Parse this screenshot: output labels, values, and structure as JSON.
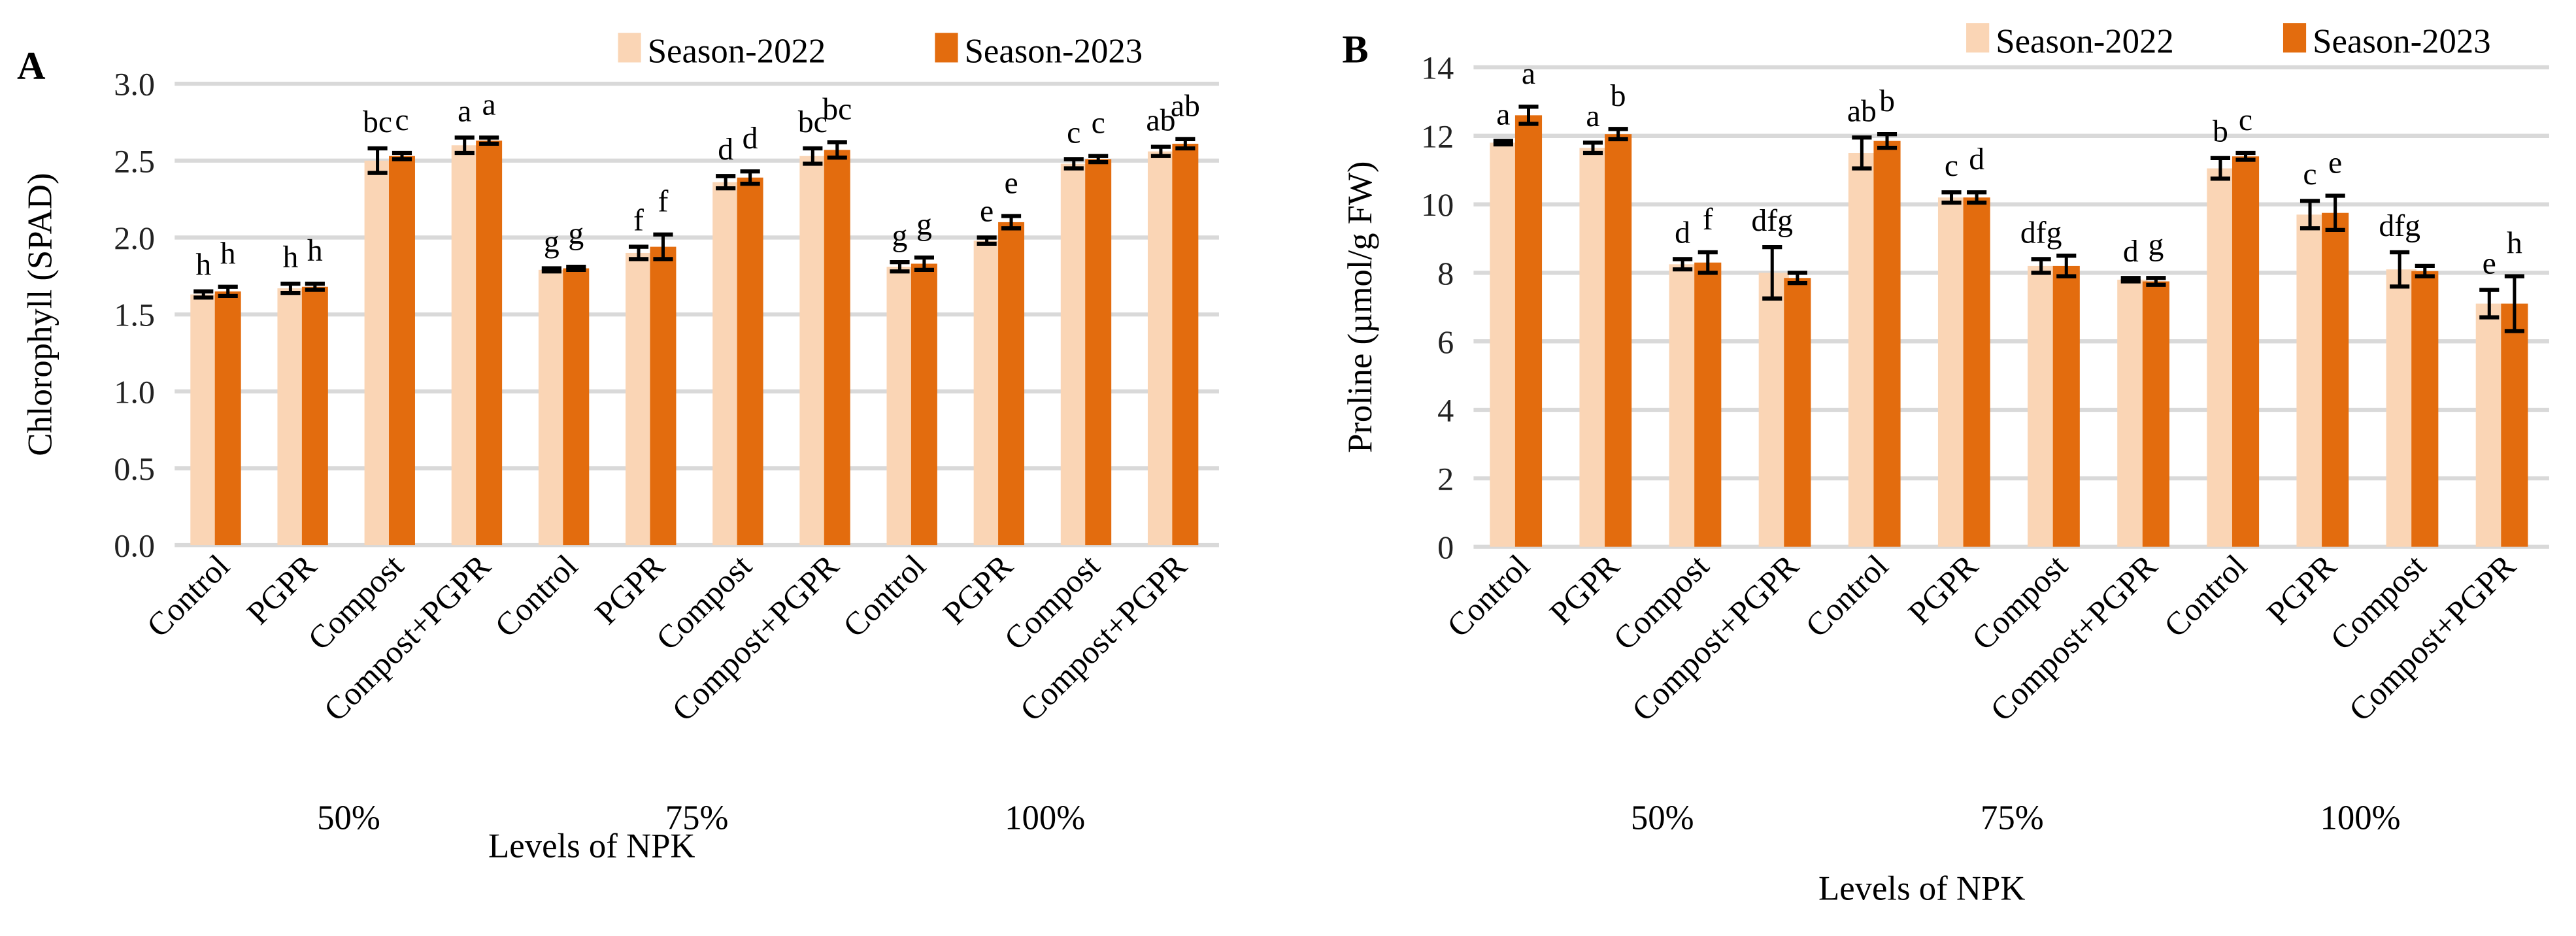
{
  "colors": {
    "s2022": "#FAD5B5",
    "s2023": "#E36C0E",
    "grid": "#D9D9D9",
    "error": "#000000"
  },
  "chart_data": [
    {
      "type": "bar",
      "panel": "A",
      "ylabel": "Chlorophyll (SPAD)",
      "xlabel": "Levels of NPK",
      "ylim": [
        0,
        3.0
      ],
      "yticks": [
        "0.0",
        "0.5",
        "1.0",
        "1.5",
        "2.0",
        "2.5",
        "3.0"
      ],
      "ytick_values": [
        0,
        0.5,
        1,
        1.5,
        2,
        2.5,
        3
      ],
      "grid": true,
      "legend_position": "top-right",
      "categories": [
        "Control",
        "PGPR",
        "Compost",
        "Compost+PGPR",
        "Control",
        "PGPR",
        "Compost",
        "Compost+PGPR",
        "Control",
        "PGPR",
        "Compost",
        "Compost+PGPR"
      ],
      "groups": [
        "50%",
        "75%",
        "100%"
      ],
      "series": [
        {
          "name": "Season-2022",
          "values": [
            1.63,
            1.67,
            2.5,
            2.6,
            1.79,
            1.9,
            2.36,
            2.53,
            1.81,
            1.98,
            2.48,
            2.56
          ],
          "errors": [
            0.02,
            0.03,
            0.08,
            0.05,
            0.01,
            0.04,
            0.04,
            0.05,
            0.03,
            0.02,
            0.03,
            0.03
          ],
          "letters": [
            "h",
            "h",
            "bc",
            "a",
            "g",
            "f",
            "d",
            "bc",
            "g",
            "e",
            "c",
            "ab"
          ]
        },
        {
          "name": "Season-2023",
          "values": [
            1.65,
            1.68,
            2.53,
            2.63,
            1.8,
            1.94,
            2.39,
            2.57,
            1.83,
            2.1,
            2.51,
            2.61
          ],
          "errors": [
            0.03,
            0.02,
            0.02,
            0.02,
            0.01,
            0.08,
            0.04,
            0.05,
            0.04,
            0.04,
            0.02,
            0.03
          ],
          "letters": [
            "h",
            "h",
            "c",
            "a",
            "g",
            "f",
            "d",
            "bc",
            "g",
            "e",
            "c",
            "ab"
          ]
        }
      ]
    },
    {
      "type": "bar",
      "panel": "B",
      "ylabel": "Proline (µmol/g FW)",
      "xlabel": "Levels of NPK",
      "ylim": [
        0,
        14
      ],
      "yticks": [
        "0",
        "2",
        "4",
        "6",
        "8",
        "10",
        "12",
        "14"
      ],
      "ytick_values": [
        0,
        2,
        4,
        6,
        8,
        10,
        12,
        14
      ],
      "grid": true,
      "legend_position": "top-right",
      "categories": [
        "Control",
        "PGPR",
        "Compost",
        "Compost+PGPR",
        "Control",
        "PGPR",
        "Compost",
        "Compost+PGPR",
        "Control",
        "PGPR",
        "Compost",
        "Compost+PGPR"
      ],
      "groups": [
        "50%",
        "75%",
        "100%"
      ],
      "series": [
        {
          "name": "Season-2022",
          "values": [
            11.8,
            11.65,
            8.25,
            8.0,
            11.5,
            10.2,
            8.2,
            7.8,
            11.05,
            9.7,
            8.1,
            7.1
          ],
          "errors": [
            0.05,
            0.15,
            0.15,
            0.75,
            0.45,
            0.15,
            0.2,
            0.05,
            0.3,
            0.4,
            0.5,
            0.4
          ],
          "letters": [
            "a",
            "a",
            "d",
            "dfg",
            "ab",
            "c",
            "dfg",
            "d",
            "b",
            "c",
            "dfg",
            "e"
          ]
        },
        {
          "name": "Season-2023",
          "values": [
            12.6,
            12.05,
            8.3,
            7.85,
            11.85,
            10.2,
            8.2,
            7.75,
            11.4,
            9.75,
            8.05,
            7.1
          ],
          "errors": [
            0.25,
            0.15,
            0.3,
            0.15,
            0.2,
            0.15,
            0.3,
            0.1,
            0.1,
            0.5,
            0.15,
            0.8
          ],
          "letters": [
            "a",
            "b",
            "f",
            "",
            "b",
            "d",
            "",
            "g",
            "c",
            "e",
            "",
            "h"
          ]
        }
      ]
    }
  ]
}
